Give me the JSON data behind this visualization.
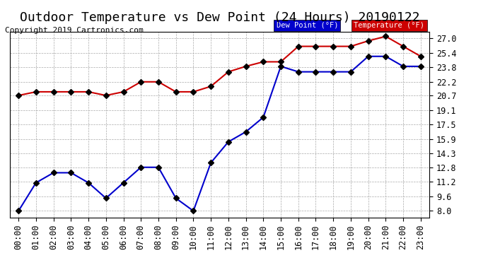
{
  "title": "Outdoor Temperature vs Dew Point (24 Hours) 20190122",
  "copyright": "Copyright 2019 Cartronics.com",
  "xlabel": "",
  "ylabel_right": "",
  "background_color": "#ffffff",
  "plot_bg_color": "#ffffff",
  "grid_color": "#aaaaaa",
  "x_labels": [
    "00:00",
    "01:00",
    "02:00",
    "03:00",
    "04:00",
    "05:00",
    "06:00",
    "07:00",
    "08:00",
    "09:00",
    "10:00",
    "11:00",
    "12:00",
    "13:00",
    "14:00",
    "15:00",
    "16:00",
    "17:00",
    "18:00",
    "19:00",
    "20:00",
    "21:00",
    "22:00",
    "23:00"
  ],
  "y_ticks": [
    8.0,
    9.6,
    11.2,
    12.8,
    14.3,
    15.9,
    17.5,
    19.1,
    20.7,
    22.2,
    23.8,
    25.4,
    27.0
  ],
  "ylim": [
    7.3,
    27.7
  ],
  "temperature": [
    20.7,
    21.1,
    21.1,
    21.1,
    21.1,
    20.7,
    21.1,
    22.2,
    22.2,
    21.1,
    21.1,
    21.7,
    23.3,
    23.9,
    24.4,
    24.4,
    26.1,
    26.1,
    26.1,
    26.1,
    26.7,
    27.2,
    26.1,
    25.0
  ],
  "dew_point": [
    8.0,
    11.1,
    12.2,
    12.2,
    11.1,
    9.4,
    11.1,
    12.8,
    12.8,
    9.4,
    8.0,
    13.3,
    15.6,
    16.7,
    18.3,
    23.9,
    23.3,
    23.3,
    23.3,
    23.3,
    25.0,
    25.0,
    23.9,
    23.9
  ],
  "temp_color": "#cc0000",
  "dew_color": "#0000cc",
  "marker": "D",
  "marker_size": 4,
  "line_width": 1.5,
  "title_fontsize": 13,
  "tick_fontsize": 8.5,
  "legend_temp_label": "Temperature (°F)",
  "legend_dew_label": "Dew Point (°F)",
  "copyright_fontsize": 8
}
